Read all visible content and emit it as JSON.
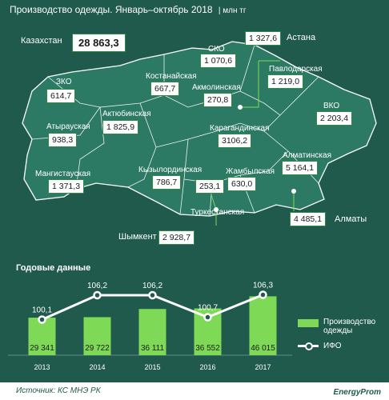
{
  "header": {
    "title": "Производство одежды. Январь–октябрь 2018",
    "unit": "| млн тг"
  },
  "kazakhstan": {
    "label": "Казахстан",
    "value": "28 863,3"
  },
  "regions": [
    {
      "id": "zko",
      "label": "ЗКО",
      "value": "614,7"
    },
    {
      "id": "atyrau",
      "label": "Атырауская",
      "value": "938,3"
    },
    {
      "id": "mangistau",
      "label": "Мангистауская",
      "value": "1 371,3"
    },
    {
      "id": "aktobe",
      "label": "Актюбинская",
      "value": "1 825,9"
    },
    {
      "id": "kostanay",
      "label": "Костанайская",
      "value": "667,7"
    },
    {
      "id": "sko",
      "label": "СКО",
      "value": "1 070,6"
    },
    {
      "id": "astana",
      "label": "Астана",
      "value": "1 327,6"
    },
    {
      "id": "akmola",
      "label": "Акмолинская",
      "value": "270,8"
    },
    {
      "id": "pavlodar",
      "label": "Павлодарская",
      "value": "1 219,0"
    },
    {
      "id": "vko",
      "label": "ВКО",
      "value": "2 203,4"
    },
    {
      "id": "karaganda",
      "label": "Карагандинская",
      "value": "3106,2"
    },
    {
      "id": "kyzylorda",
      "label": "Кызылординская",
      "value": "786,7"
    },
    {
      "id": "zhambyl",
      "label": "Жамбылская",
      "value": "630,0"
    },
    {
      "id": "unlabeled",
      "label": "",
      "value": "253,1"
    },
    {
      "id": "almaty_obl",
      "label": "Алматинская",
      "value": "5 164,1"
    },
    {
      "id": "almaty",
      "label": "Алматы",
      "value": "4 485,1"
    },
    {
      "id": "turkestan",
      "label": "Туркестанская",
      "value": ""
    },
    {
      "id": "shymkent",
      "label": "Шымкент",
      "value": "2 928,7"
    }
  ],
  "annual": {
    "title": "Годовые данные",
    "legend": {
      "bar": "Производство одежды",
      "line": "ИФО"
    },
    "colors": {
      "bar": "#7ed957",
      "line": "#ffffff"
    }
  },
  "chart_data": {
    "type": "bar",
    "categories": [
      "2013",
      "2014",
      "2015",
      "2016",
      "2017"
    ],
    "series": [
      {
        "name": "Производство одежды",
        "values": [
          29341,
          29722,
          36111,
          36552,
          46015
        ],
        "labels": [
          "29 341",
          "29 722",
          "36 111",
          "36 552",
          "46 015"
        ]
      },
      {
        "name": "ИФО",
        "values": [
          100.1,
          106.2,
          106.2,
          100.7,
          106.3
        ],
        "labels": [
          "100,1",
          "106,2",
          "106,2",
          "100,7",
          "106,3"
        ]
      }
    ]
  },
  "footer": {
    "source": "Источник: КС МНЭ РК",
    "brand": "EnergyProm"
  }
}
